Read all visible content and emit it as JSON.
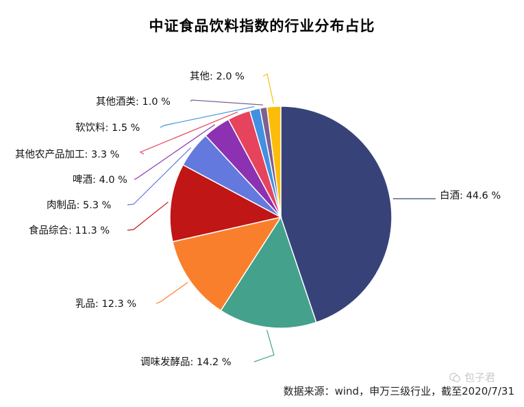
{
  "chart_data": {
    "type": "pie",
    "title": "中证食品饮料指数的行业分布占比",
    "unit": "%",
    "slices": [
      {
        "label": "白酒",
        "value": 44.6,
        "color": "#374378",
        "display": "白酒: 44.6 %"
      },
      {
        "label": "调味发酵品",
        "value": 14.2,
        "color": "#43a18c",
        "display": "调味发酵品: 14.2 %"
      },
      {
        "label": "乳品",
        "value": 12.3,
        "color": "#fa7f2c",
        "display": "乳品: 12.3 %"
      },
      {
        "label": "食品综合",
        "value": 11.3,
        "color": "#c01616",
        "display": "食品综合: 11.3 %"
      },
      {
        "label": "肉制品",
        "value": 5.3,
        "color": "#6479de",
        "display": "肉制品: 5.3 %"
      },
      {
        "label": "啤酒",
        "value": 4.0,
        "color": "#8c31b1",
        "display": "啤酒: 4.0 %"
      },
      {
        "label": "其他农产品加工",
        "value": 3.3,
        "color": "#e6435c",
        "display": "其他农产品加工: 3.3 %"
      },
      {
        "label": "软饮料",
        "value": 1.5,
        "color": "#4190e2",
        "display": "软饮料: 1.5 %"
      },
      {
        "label": "其他酒类",
        "value": 1.0,
        "color": "#7d5f92",
        "display": "其他酒类: 1.0 %"
      },
      {
        "label": "其他",
        "value": 2.0,
        "color": "#fbbd09",
        "display": "其他: 2.0 %"
      }
    ]
  },
  "footer": {
    "source": "数据来源：wind，申万三级行业，截至2020/7/31",
    "watermark": "包子君"
  }
}
